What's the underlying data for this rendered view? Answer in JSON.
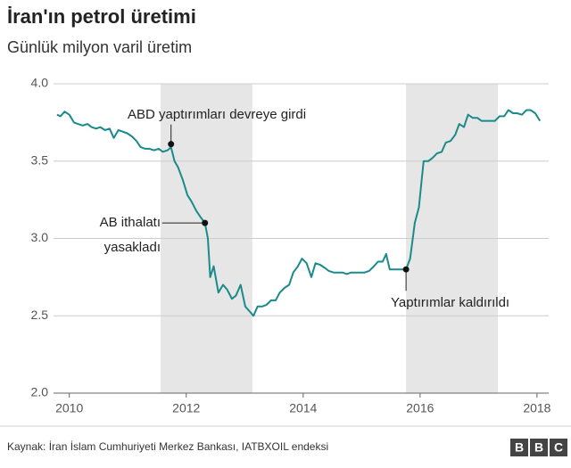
{
  "chart_data": {
    "type": "line",
    "title": "İran'ın petrol üretimi",
    "subtitle": "Günlük milyon varil üretim",
    "xlim": [
      2009.73,
      2018.2
    ],
    "xticks": [
      2010,
      2012,
      2014,
      2016,
      2018
    ],
    "ylim": [
      2.0,
      4.0
    ],
    "yticks": [
      {
        "value": 2.0,
        "label": "2.0"
      },
      {
        "value": 2.5,
        "label": "2.5"
      },
      {
        "value": 3.0,
        "label": "3.0"
      },
      {
        "value": 3.5,
        "label": "3.5"
      },
      {
        "value": 4.0,
        "label": "4.0"
      }
    ],
    "grid": true,
    "shaded": [
      [
        2011.56,
        2013.13
      ],
      [
        2015.76,
        2017.33
      ]
    ],
    "shade_color": "#e6e6e6",
    "series": [
      {
        "color": "#1b8a8a",
        "x": [
          2009.79,
          2009.85,
          2009.92,
          2010.0,
          2010.08,
          2010.15,
          2010.23,
          2010.31,
          2010.38,
          2010.46,
          2010.53,
          2010.61,
          2010.69,
          2010.76,
          2010.84,
          2010.92,
          2010.99,
          2011.07,
          2011.15,
          2011.22,
          2011.3,
          2011.37,
          2011.45,
          2011.53,
          2011.6,
          2011.68,
          2011.74,
          2011.8,
          2011.86,
          2011.94,
          2012.02,
          2012.09,
          2012.17,
          2012.24,
          2012.32,
          2012.37,
          2012.41,
          2012.47,
          2012.55,
          2012.63,
          2012.7,
          2012.78,
          2012.85,
          2012.93,
          2013.01,
          2013.08,
          2013.15,
          2013.22,
          2013.3,
          2013.37,
          2013.45,
          2013.53,
          2013.6,
          2013.68,
          2013.76,
          2013.83,
          2013.91,
          2013.98,
          2014.06,
          2014.14,
          2014.21,
          2014.29,
          2014.37,
          2014.44,
          2014.52,
          2014.6,
          2014.67,
          2014.75,
          2014.82,
          2014.9,
          2014.98,
          2015.05,
          2015.13,
          2015.21,
          2015.28,
          2015.36,
          2015.42,
          2015.48,
          2015.56,
          2015.63,
          2015.71,
          2015.76,
          2015.83,
          2015.91,
          2015.98,
          2016.06,
          2016.14,
          2016.21,
          2016.29,
          2016.37,
          2016.44,
          2016.52,
          2016.6,
          2016.67,
          2016.75,
          2016.82,
          2016.9,
          2016.98,
          2017.05,
          2017.13,
          2017.21,
          2017.28,
          2017.36,
          2017.44,
          2017.51,
          2017.59,
          2017.66,
          2017.74,
          2017.82,
          2017.89,
          2017.97,
          2018.05
        ],
        "values": [
          3.8,
          3.79,
          3.82,
          3.8,
          3.75,
          3.74,
          3.73,
          3.74,
          3.72,
          3.71,
          3.72,
          3.7,
          3.71,
          3.65,
          3.7,
          3.69,
          3.68,
          3.66,
          3.63,
          3.59,
          3.58,
          3.58,
          3.57,
          3.58,
          3.56,
          3.57,
          3.59,
          3.5,
          3.46,
          3.38,
          3.28,
          3.24,
          3.18,
          3.14,
          3.1,
          3.0,
          2.75,
          2.82,
          2.65,
          2.7,
          2.67,
          2.61,
          2.63,
          2.7,
          2.56,
          2.53,
          2.5,
          2.56,
          2.56,
          2.57,
          2.6,
          2.6,
          2.65,
          2.68,
          2.7,
          2.78,
          2.82,
          2.87,
          2.84,
          2.75,
          2.84,
          2.83,
          2.81,
          2.79,
          2.78,
          2.78,
          2.78,
          2.77,
          2.78,
          2.78,
          2.78,
          2.78,
          2.79,
          2.82,
          2.85,
          2.85,
          2.9,
          2.8,
          2.8,
          2.8,
          2.8,
          2.8,
          2.87,
          3.1,
          3.2,
          3.5,
          3.5,
          3.52,
          3.55,
          3.56,
          3.62,
          3.63,
          3.67,
          3.74,
          3.72,
          3.8,
          3.78,
          3.78,
          3.76,
          3.76,
          3.76,
          3.76,
          3.79,
          3.79,
          3.83,
          3.81,
          3.81,
          3.8,
          3.83,
          3.83,
          3.81,
          3.76
        ]
      }
    ],
    "annotations": [
      {
        "lines": [
          "ABD yaptırımları devreye girdi"
        ],
        "x": 2011.74,
        "y": 3.61
      },
      {
        "lines": [
          "AB ithalatı",
          "yasakladı"
        ],
        "x": 2012.32,
        "y": 3.1
      },
      {
        "lines": [
          "Yaptırımlar kaldırıldı"
        ],
        "x": 2015.76,
        "y": 2.8
      }
    ],
    "source": "Kaynak: İran İslam Cumhuriyeti Merkez Bankası, IATBXOIL endeksi",
    "logo": [
      "B",
      "B",
      "C"
    ]
  }
}
